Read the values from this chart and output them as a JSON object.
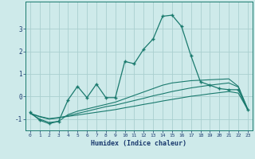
{
  "title": "",
  "xlabel": "Humidex (Indice chaleur)",
  "ylabel": "",
  "bg_color": "#ceeaea",
  "grid_color": "#aacfcf",
  "line_color": "#1a7a6e",
  "x_values": [
    0,
    1,
    2,
    3,
    4,
    5,
    6,
    7,
    8,
    9,
    10,
    11,
    12,
    13,
    14,
    15,
    16,
    17,
    18,
    19,
    20,
    21,
    22,
    23
  ],
  "main_y": [
    -0.7,
    -1.05,
    -1.2,
    -1.1,
    -0.15,
    0.45,
    -0.05,
    0.55,
    -0.05,
    -0.05,
    1.55,
    1.45,
    2.1,
    2.55,
    3.55,
    3.6,
    3.1,
    1.8,
    0.65,
    0.5,
    0.35,
    0.3,
    0.3,
    -0.6
  ],
  "line2_y": [
    -0.75,
    -1.0,
    -1.15,
    -1.1,
    -0.8,
    -0.65,
    -0.55,
    -0.45,
    -0.35,
    -0.25,
    -0.1,
    0.05,
    0.2,
    0.35,
    0.5,
    0.6,
    0.65,
    0.7,
    0.72,
    0.74,
    0.76,
    0.78,
    0.45,
    -0.55
  ],
  "line3_y": [
    -0.75,
    -0.9,
    -1.0,
    -0.95,
    -0.85,
    -0.75,
    -0.65,
    -0.55,
    -0.45,
    -0.38,
    -0.28,
    -0.18,
    -0.08,
    0.03,
    0.12,
    0.22,
    0.3,
    0.38,
    0.44,
    0.5,
    0.55,
    0.6,
    0.42,
    -0.58
  ],
  "line4_y": [
    -0.75,
    -0.88,
    -0.98,
    -0.93,
    -0.88,
    -0.82,
    -0.76,
    -0.7,
    -0.64,
    -0.58,
    -0.5,
    -0.43,
    -0.35,
    -0.28,
    -0.2,
    -0.13,
    -0.06,
    0.01,
    0.06,
    0.12,
    0.17,
    0.22,
    0.15,
    -0.58
  ],
  "ylim": [
    -1.5,
    4.2
  ],
  "xlim": [
    -0.5,
    23.5
  ],
  "yticks": [
    -1,
    0,
    1,
    2,
    3
  ],
  "xticks": [
    0,
    1,
    2,
    3,
    4,
    5,
    6,
    7,
    8,
    9,
    10,
    11,
    12,
    13,
    14,
    15,
    16,
    17,
    18,
    19,
    20,
    21,
    22,
    23
  ]
}
